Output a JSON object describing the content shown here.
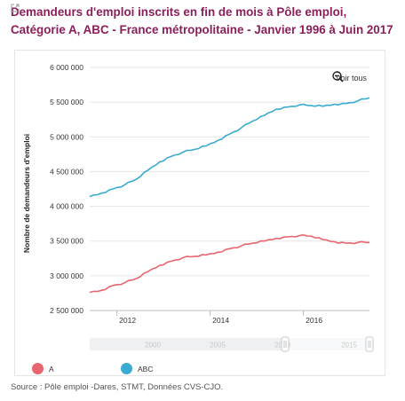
{
  "title": "Demandeurs d'emploi inscrits en fin de mois à Pôle emploi, Catégorie A, ABC - France métropolitaine - Janvier 1996 à Juin 2017",
  "zoom_label": "Voir tous",
  "source": "Source : Pôle emploi -Dares, STMT, Données CVS-CJO.",
  "colors": {
    "A": "#e8646e",
    "ABC": "#3aabd0",
    "title": "#8b1f5a"
  },
  "icons": [
    "external-link-icon",
    "zoom-out-icon"
  ],
  "chart_data": {
    "type": "line",
    "title": "Demandeurs d'emploi inscrits en fin de mois à Pôle emploi, Catégorie A, ABC - France métropolitaine - Janvier 1996 à Juin 2017",
    "ylabel": "Nombre de demandeurs d'emploi",
    "xlabel": "",
    "ylim": [
      2500000,
      6000000
    ],
    "xlim": [
      "2011-06",
      "2017-06"
    ],
    "y_ticks": [
      "6 000 000",
      "5 500 000",
      "5 000 000",
      "4 500 000",
      "4 000 000",
      "3 500 000",
      "3 000 000",
      "2 500 000"
    ],
    "x_ticks": [
      "2012",
      "2014",
      "2016"
    ],
    "navigator_ticks": [
      "2000",
      "2005",
      "2010",
      "2015"
    ],
    "grid": true,
    "legend_position": "bottom-left",
    "series": [
      {
        "name": "A",
        "color": "#e8646e",
        "points": [
          [
            "2011-06",
            2760000
          ],
          [
            "2011-09",
            2790000
          ],
          [
            "2011-12",
            2860000
          ],
          [
            "2012-03",
            2900000
          ],
          [
            "2012-06",
            2960000
          ],
          [
            "2012-09",
            3060000
          ],
          [
            "2012-12",
            3150000
          ],
          [
            "2013-03",
            3210000
          ],
          [
            "2013-06",
            3260000
          ],
          [
            "2013-09",
            3280000
          ],
          [
            "2013-12",
            3300000
          ],
          [
            "2014-03",
            3340000
          ],
          [
            "2014-06",
            3390000
          ],
          [
            "2014-09",
            3430000
          ],
          [
            "2014-12",
            3470000
          ],
          [
            "2015-03",
            3500000
          ],
          [
            "2015-06",
            3540000
          ],
          [
            "2015-09",
            3560000
          ],
          [
            "2015-12",
            3580000
          ],
          [
            "2016-03",
            3570000
          ],
          [
            "2016-06",
            3520000
          ],
          [
            "2016-09",
            3490000
          ],
          [
            "2016-12",
            3470000
          ],
          [
            "2017-03",
            3480000
          ],
          [
            "2017-06",
            3480000
          ]
        ]
      },
      {
        "name": "ABC",
        "color": "#3aabd0",
        "points": [
          [
            "2011-06",
            4140000
          ],
          [
            "2011-09",
            4190000
          ],
          [
            "2011-12",
            4250000
          ],
          [
            "2012-03",
            4310000
          ],
          [
            "2012-06",
            4390000
          ],
          [
            "2012-09",
            4520000
          ],
          [
            "2012-12",
            4640000
          ],
          [
            "2013-03",
            4720000
          ],
          [
            "2013-06",
            4780000
          ],
          [
            "2013-09",
            4820000
          ],
          [
            "2013-12",
            4870000
          ],
          [
            "2014-03",
            4950000
          ],
          [
            "2014-06",
            5040000
          ],
          [
            "2014-09",
            5130000
          ],
          [
            "2014-12",
            5230000
          ],
          [
            "2015-03",
            5310000
          ],
          [
            "2015-06",
            5400000
          ],
          [
            "2015-09",
            5430000
          ],
          [
            "2015-12",
            5460000
          ],
          [
            "2016-03",
            5450000
          ],
          [
            "2016-06",
            5440000
          ],
          [
            "2016-09",
            5470000
          ],
          [
            "2016-12",
            5480000
          ],
          [
            "2017-03",
            5520000
          ],
          [
            "2017-06",
            5560000
          ]
        ]
      }
    ]
  }
}
